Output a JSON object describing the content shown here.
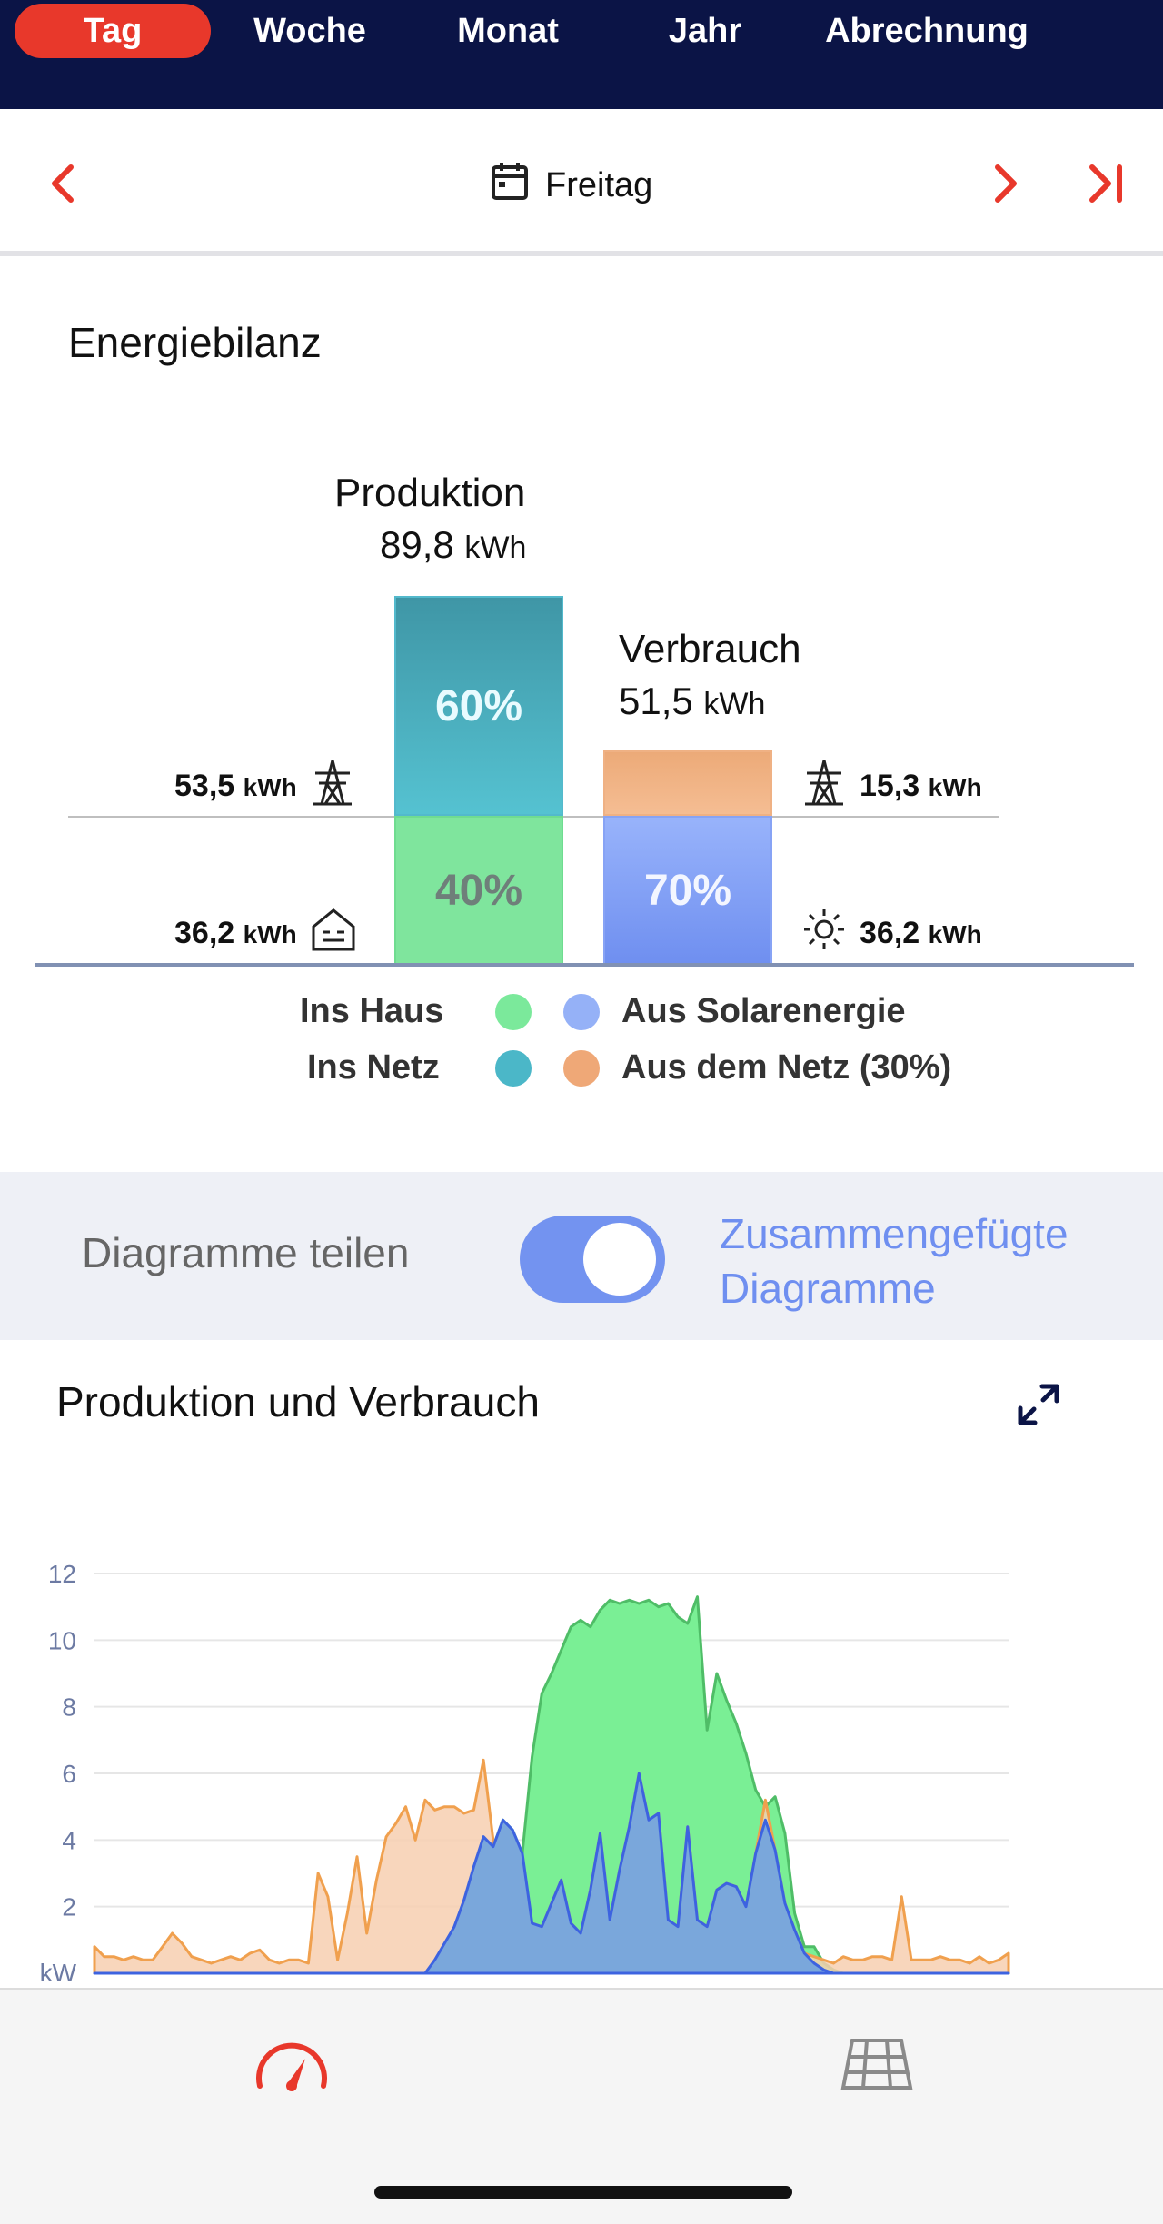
{
  "tabs": [
    {
      "label": "Tag",
      "active": true
    },
    {
      "label": "Woche",
      "active": false
    },
    {
      "label": "Monat",
      "active": false
    },
    {
      "label": "Jahr",
      "active": false
    },
    {
      "label": "Abrechnung",
      "active": false
    }
  ],
  "date_nav": {
    "label": "Freitag",
    "prev_icon": "chevron-left-icon",
    "next_icon": "chevron-right-icon",
    "last_icon": "skip-to-end-icon",
    "calendar_icon": "calendar-icon"
  },
  "bilanz": {
    "title": "Energiebilanz",
    "production": {
      "label": "Produktion",
      "value": "89,8",
      "unit": "kWh"
    },
    "consumption": {
      "label": "Verbrauch",
      "value": "51,5",
      "unit": "kWh"
    },
    "prod_grid_pct": "60%",
    "prod_house_pct": "40%",
    "cons_solar_pct": "70%",
    "prod_grid": {
      "value": "53,5",
      "unit": "kWh",
      "icon": "power-pylon-icon"
    },
    "prod_house": {
      "value": "36,2",
      "unit": "kWh",
      "icon": "house-icon"
    },
    "cons_grid": {
      "value": "15,3",
      "unit": "kWh",
      "icon": "power-pylon-icon"
    },
    "cons_solar": {
      "value": "36,2",
      "unit": "kWh",
      "icon": "sun-icon"
    },
    "legend": {
      "ins_haus": "Ins Haus",
      "ins_netz": "Ins Netz",
      "aus_solar": "Aus Solarenergie",
      "aus_netz": "Aus dem Netz (30%)"
    }
  },
  "toggle": {
    "left_label": "Diagramme teilen",
    "right_label_line1": "Zusammengefügte",
    "right_label_line2": "Diagramme",
    "on": true
  },
  "chart_title": "Produktion und Verbrauch",
  "chart_data": {
    "type": "area",
    "ylabel": "kW",
    "ylim": [
      0,
      12
    ],
    "yticks": [
      "2",
      "4",
      "6",
      "8",
      "10",
      "12"
    ],
    "grid": true,
    "series": [
      {
        "values": [
          0,
          0,
          0,
          0,
          0,
          0,
          0,
          0,
          0,
          0,
          0,
          0,
          0,
          0,
          0,
          0,
          0,
          0,
          0,
          0,
          0,
          0,
          0,
          0,
          0,
          0,
          0,
          0,
          0,
          0,
          0,
          0,
          0,
          0,
          0,
          0.4,
          0.9,
          1.4,
          2.2,
          3.2,
          4.1,
          3.8,
          4.6,
          4.3,
          3.6,
          6.5,
          8.4,
          9.0,
          9.7,
          10.4,
          10.6,
          10.4,
          10.9,
          11.2,
          11.1,
          11.2,
          11.1,
          11.2,
          11.0,
          11.1,
          10.7,
          10.5,
          11.3,
          7.3,
          9.0,
          8.2,
          7.5,
          6.6,
          5.5,
          5.0,
          5.3,
          4.2,
          1.8,
          0.8,
          0.8,
          0.3,
          0.1,
          0,
          0,
          0,
          0,
          0,
          0,
          0,
          0,
          0,
          0,
          0,
          0,
          0,
          0,
          0,
          0,
          0,
          0
        ]
      },
      {
        "values": [
          0,
          0,
          0,
          0,
          0,
          0,
          0,
          0,
          0,
          0,
          0,
          0,
          0,
          0,
          0,
          0,
          0,
          0,
          0,
          0,
          0,
          0,
          0,
          0,
          0,
          0,
          0,
          0,
          0,
          0,
          0,
          0,
          0,
          0,
          0,
          0.4,
          0.9,
          1.4,
          2.2,
          3.2,
          4.1,
          3.8,
          4.6,
          4.3,
          3.6,
          1.5,
          1.4,
          2.1,
          2.8,
          1.5,
          1.2,
          2.5,
          4.2,
          1.6,
          3.1,
          4.4,
          6.0,
          4.6,
          4.8,
          1.6,
          1.4,
          4.4,
          1.6,
          1.4,
          2.5,
          2.7,
          2.6,
          2.0,
          3.6,
          4.6,
          3.7,
          2.1,
          1.3,
          0.6,
          0.3,
          0.1,
          0,
          0,
          0,
          0,
          0,
          0,
          0,
          0,
          0,
          0,
          0,
          0,
          0,
          0,
          0,
          0,
          0,
          0,
          0
        ]
      },
      {
        "values": [
          0.8,
          0.5,
          0.5,
          0.4,
          0.5,
          0.4,
          0.4,
          0.8,
          1.2,
          0.9,
          0.5,
          0.4,
          0.3,
          0.4,
          0.5,
          0.4,
          0.6,
          0.7,
          0.4,
          0.3,
          0.4,
          0.4,
          0.3,
          3.0,
          2.3,
          0.4,
          1.8,
          3.5,
          1.2,
          2.8,
          4.1,
          4.5,
          5.0,
          4.0,
          5.2,
          4.9,
          5.0,
          5.0,
          4.8,
          4.9,
          6.4,
          4.0,
          2.2,
          2.5,
          1.8,
          1.5,
          1.4,
          2.1,
          2.8,
          1.5,
          1.2,
          2.5,
          4.2,
          1.6,
          3.1,
          4.4,
          6.0,
          4.6,
          4.8,
          1.6,
          1.4,
          4.4,
          1.6,
          1.4,
          2.5,
          2.7,
          2.6,
          2.0,
          3.6,
          5.2,
          3.7,
          2.1,
          1.3,
          0.6,
          0.5,
          0.4,
          0.3,
          0.5,
          0.4,
          0.4,
          0.5,
          0.5,
          0.4,
          2.3,
          0.4,
          0.4,
          0.4,
          0.5,
          0.4,
          0.4,
          0.3,
          0.5,
          0.3,
          0.4,
          0.6
        ]
      }
    ]
  },
  "bottom_nav": {
    "left_icon": "gauge-icon",
    "right_icon": "solar-panel-icon"
  },
  "colors": {
    "header_bg": "#0b1446",
    "accent_red": "#e8382b",
    "green": "#7be99b",
    "teal": "#43a7b6",
    "blue": "#7a9df4",
    "orange": "#eeaa78"
  }
}
